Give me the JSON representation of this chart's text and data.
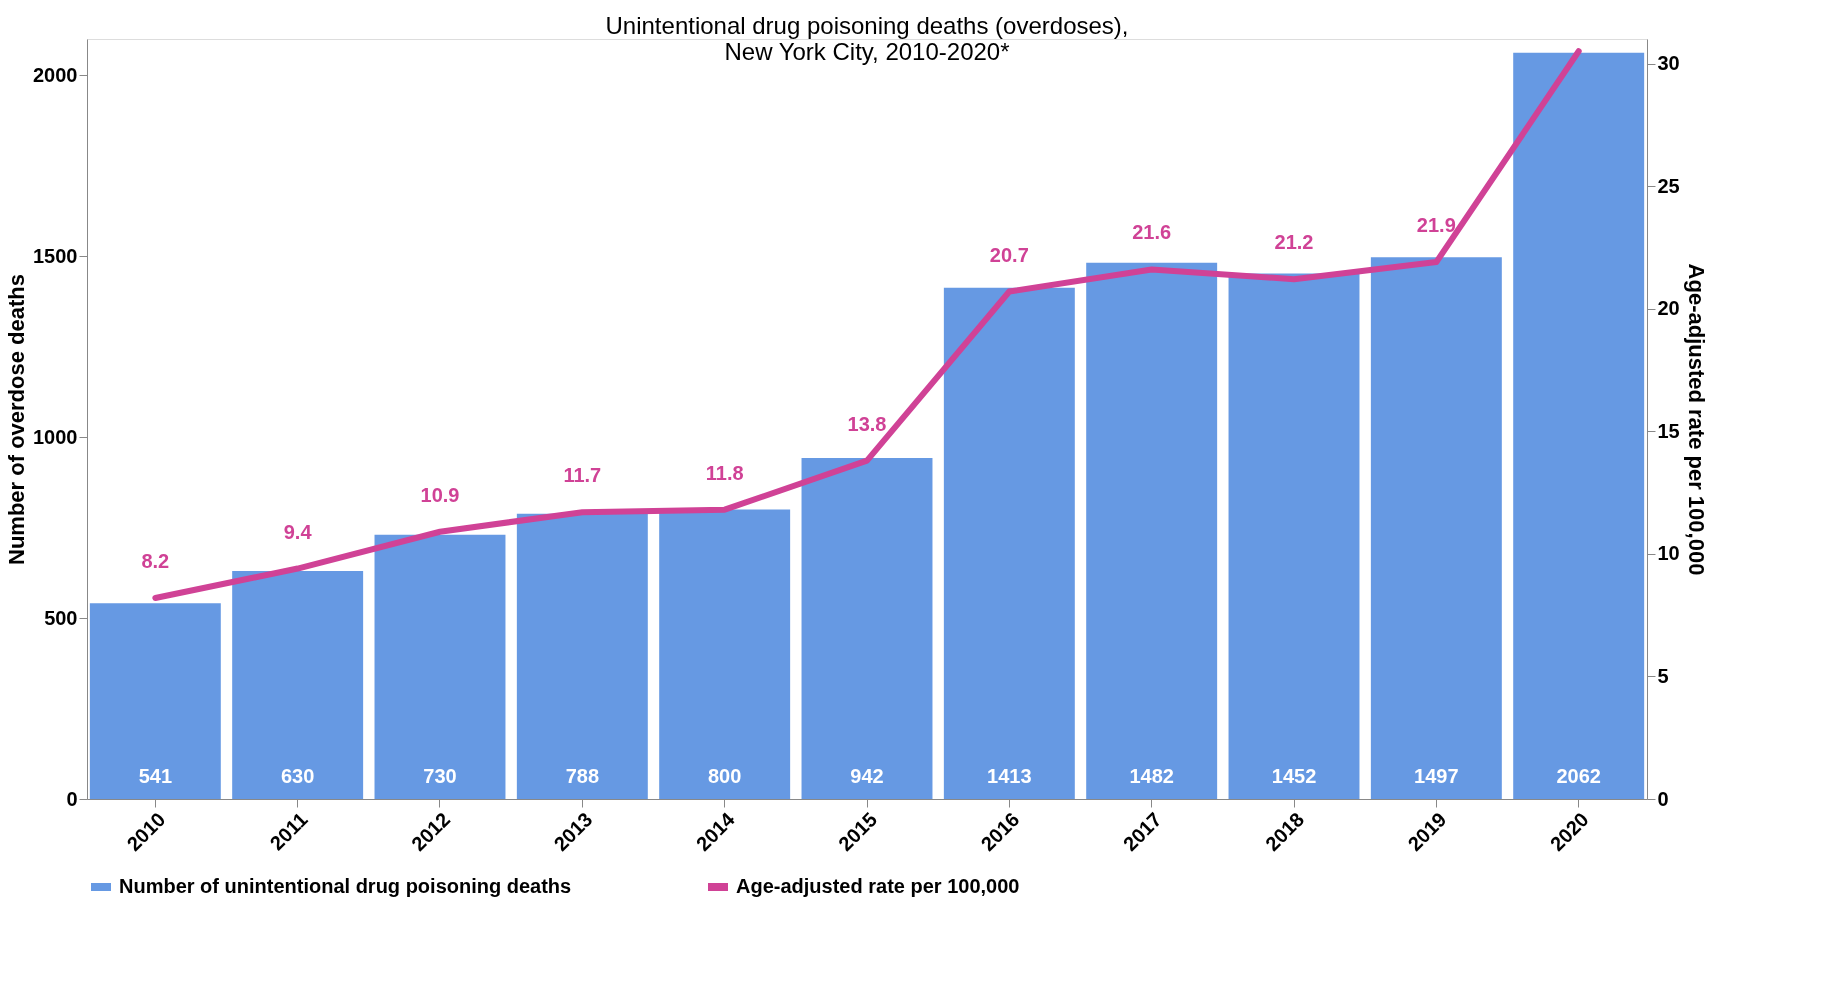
{
  "chart_data": {
    "type": "bar",
    "title": [
      "Unintentional drug poisoning deaths (overdoses),",
      "New York City, 2010-2020*"
    ],
    "categories": [
      "2010",
      "2011",
      "2012",
      "2013",
      "2014",
      "2015",
      "2016",
      "2017",
      "2018",
      "2019",
      "2020"
    ],
    "series": [
      {
        "name": "Number of unintentional drug poisoning deaths",
        "color": "#6699e3",
        "values": [
          541,
          630,
          730,
          788,
          800,
          942,
          1413,
          1482,
          1452,
          1497,
          2062
        ]
      },
      {
        "name": "Age-adjusted rate per 100,000",
        "type": "line",
        "axis": "y2",
        "color": "#d04296",
        "values": [
          8.2,
          9.4,
          10.9,
          11.7,
          11.8,
          13.8,
          20.7,
          21.6,
          21.2,
          21.9,
          30.5
        ],
        "value_labels": [
          "8.2",
          "9.4",
          "10.9",
          "11.7",
          "11.8",
          "13.8",
          "20.7",
          "21.6",
          "21.2",
          "21.9",
          null
        ]
      }
    ],
    "ylabel": "Number of overdose deaths",
    "y2label": "Age-adjusted rate per 100,000",
    "ylim": [
      0,
      2100
    ],
    "yticks": [
      0,
      500,
      1000,
      1500,
      2000
    ],
    "y2lim": [
      0,
      31
    ],
    "y2ticks": [
      0,
      5,
      10,
      15,
      20,
      25,
      30
    ],
    "data_labels": true,
    "legend": "bottom",
    "grid": false
  }
}
